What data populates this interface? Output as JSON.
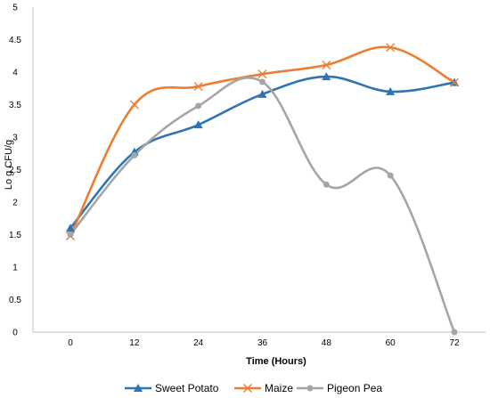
{
  "chart_data": {
    "type": "line",
    "title": "",
    "xlabel": "Time (Hours)",
    "ylabel": "Lo g CFU/g",
    "x": [
      0,
      12,
      24,
      36,
      48,
      60,
      72
    ],
    "xlim": [
      0,
      72
    ],
    "ylim": [
      0,
      5
    ],
    "yticks": [
      "0",
      "0.5",
      "1",
      "1.5",
      "2",
      "2.5",
      "3",
      "3.5",
      "4",
      "4.5",
      "5"
    ],
    "xticks": [
      "0",
      "12",
      "24",
      "36",
      "48",
      "60",
      "72"
    ],
    "grid": false,
    "smooth": true,
    "legend_position": "bottom",
    "series": [
      {
        "name": "Sweet Potato",
        "values": [
          1.6,
          2.77,
          3.19,
          3.66,
          3.93,
          3.7,
          3.84
        ],
        "color": "#2E75B6",
        "marker": "triangle"
      },
      {
        "name": "Maize",
        "values": [
          1.48,
          3.5,
          3.78,
          3.97,
          4.11,
          4.38,
          3.84
        ],
        "color": "#ED7D31",
        "marker": "x"
      },
      {
        "name": "Pigeon  Pea",
        "values": [
          1.5,
          2.72,
          3.48,
          3.85,
          2.27,
          2.41,
          0.0
        ],
        "color": "#A5A5A5",
        "marker": "circle"
      }
    ]
  }
}
